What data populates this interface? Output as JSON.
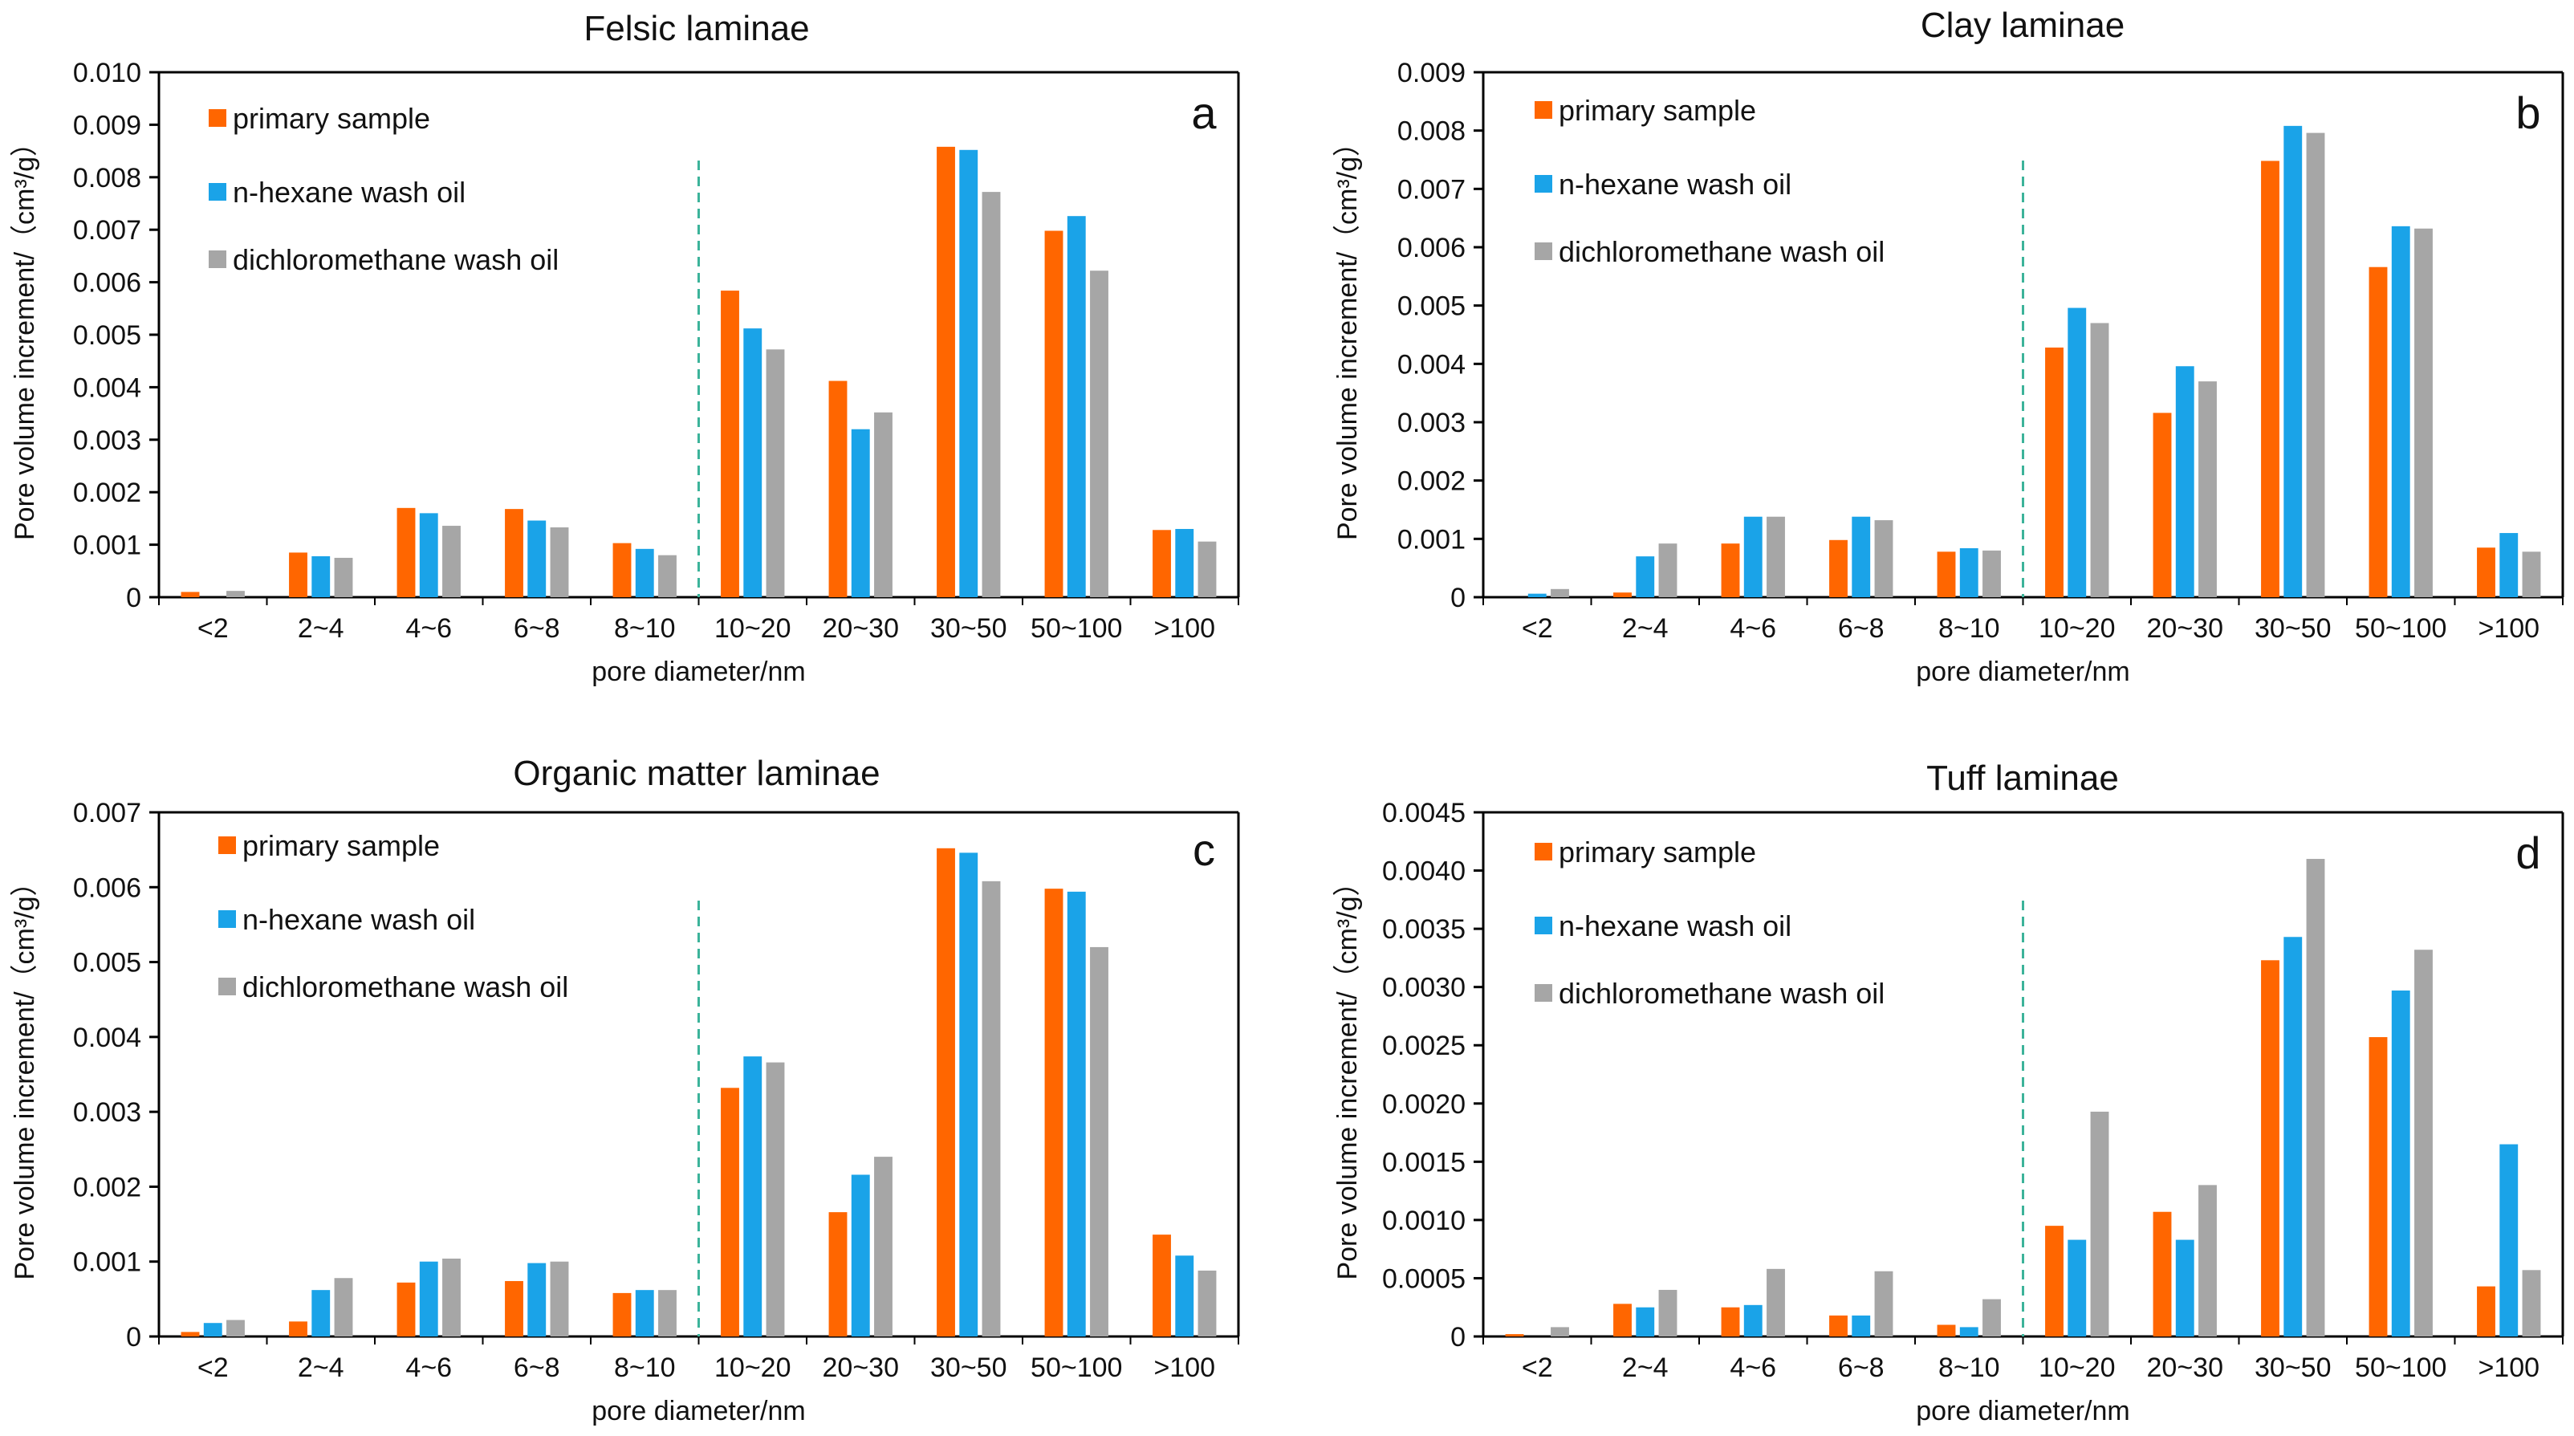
{
  "figure": {
    "colors": {
      "primary": "#FF6600",
      "hexane": "#1AA3E8",
      "dcm": "#A6A6A6",
      "divider": "#3CB39A",
      "axis": "#000000"
    }
  },
  "chart_data": [
    {
      "type": "bar",
      "title": "Felsic laminae",
      "panel_label": "a",
      "xlabel": "pore diameter/nm",
      "ylabel": "Pore volume increment/（cm³/g）",
      "ylim": [
        0,
        0.01
      ],
      "yticks": [
        0,
        0.001,
        0.002,
        0.003,
        0.004,
        0.005,
        0.006,
        0.007,
        0.008,
        0.009,
        0.01
      ],
      "ytick_labels": [
        "0",
        "0.001",
        "0.002",
        "0.003",
        "0.004",
        "0.005",
        "0.006",
        "0.007",
        "0.008",
        "0.009",
        "0.010"
      ],
      "categories": [
        "<2",
        "2~4",
        "4~6",
        "6~8",
        "8~10",
        "10~20",
        "20~30",
        "30~50",
        "50~100",
        ">100"
      ],
      "divider_after_index": 4,
      "legend_position": "top-left",
      "series": [
        {
          "name": "primary sample",
          "color": "#FF6600",
          "values": [
            0.0001,
            0.00085,
            0.0017,
            0.00168,
            0.00103,
            0.00584,
            0.00412,
            0.00858,
            0.00698,
            0.00128
          ]
        },
        {
          "name": "n-hexane wash oil",
          "color": "#1AA3E8",
          "values": [
            0.0,
            0.00078,
            0.0016,
            0.00146,
            0.00092,
            0.00512,
            0.0032,
            0.00852,
            0.00726,
            0.0013
          ]
        },
        {
          "name": "dichloromethane wash oil",
          "color": "#A6A6A6",
          "values": [
            0.00012,
            0.00075,
            0.00136,
            0.00133,
            0.0008,
            0.00472,
            0.00352,
            0.00772,
            0.00622,
            0.00106
          ]
        }
      ]
    },
    {
      "type": "bar",
      "title": "Clay laminae",
      "panel_label": "b",
      "xlabel": "pore  diameter/nm",
      "ylabel": "Pore volume increment/（cm³/g）",
      "ylim": [
        0,
        0.009
      ],
      "yticks": [
        0,
        0.001,
        0.002,
        0.003,
        0.004,
        0.005,
        0.006,
        0.007,
        0.008,
        0.009
      ],
      "ytick_labels": [
        "0",
        "0.001",
        "0.002",
        "0.003",
        "0.004",
        "0.005",
        "0.006",
        "0.007",
        "0.008",
        "0.009"
      ],
      "categories": [
        "<2",
        "2~4",
        "4~6",
        "6~8",
        "8~10",
        "10~20",
        "20~30",
        "30~50",
        "50~100",
        ">100"
      ],
      "divider_after_index": 4,
      "legend_position": "top-left",
      "series": [
        {
          "name": "primary sample",
          "color": "#FF6600",
          "values": [
            0.0,
            8e-05,
            0.00092,
            0.00098,
            0.00078,
            0.00428,
            0.00316,
            0.00748,
            0.00566,
            0.00085
          ]
        },
        {
          "name": "n-hexane wash oil",
          "color": "#1AA3E8",
          "values": [
            6e-05,
            0.0007,
            0.00138,
            0.00138,
            0.00084,
            0.00496,
            0.00396,
            0.00808,
            0.00636,
            0.0011
          ]
        },
        {
          "name": "dichloromethane wash oil",
          "color": "#A6A6A6",
          "values": [
            0.00014,
            0.00092,
            0.00138,
            0.00132,
            0.0008,
            0.0047,
            0.0037,
            0.00796,
            0.00632,
            0.00078
          ]
        }
      ]
    },
    {
      "type": "bar",
      "title": "Organic matter laminae",
      "panel_label": "c",
      "xlabel": "pore  diameter/nm",
      "ylabel": "Pore volume increment/（cm³/g）",
      "ylim": [
        0,
        0.007
      ],
      "yticks": [
        0,
        0.001,
        0.002,
        0.003,
        0.004,
        0.005,
        0.006,
        0.007
      ],
      "ytick_labels": [
        "0",
        "0.001",
        "0.002",
        "0.003",
        "0.004",
        "0.005",
        "0.006",
        "0.007"
      ],
      "categories": [
        "<2",
        "2~4",
        "4~6",
        "6~8",
        "8~10",
        "10~20",
        "20~30",
        "30~50",
        "50~100",
        ">100"
      ],
      "divider_after_index": 4,
      "legend_position": "top-left",
      "series": [
        {
          "name": "primary sample",
          "color": "#FF6600",
          "values": [
            6e-05,
            0.0002,
            0.00072,
            0.00074,
            0.00058,
            0.00332,
            0.00166,
            0.00652,
            0.00598,
            0.00136
          ]
        },
        {
          "name": "n-hexane wash oil",
          "color": "#1AA3E8",
          "values": [
            0.00018,
            0.00062,
            0.001,
            0.00098,
            0.00062,
            0.00374,
            0.00216,
            0.00646,
            0.00594,
            0.00108
          ]
        },
        {
          "name": "dichloromethane wash oil",
          "color": "#A6A6A6",
          "values": [
            0.00022,
            0.00078,
            0.00104,
            0.001,
            0.00062,
            0.00366,
            0.0024,
            0.00608,
            0.0052,
            0.00088
          ]
        }
      ]
    },
    {
      "type": "bar",
      "title": "Tuff laminae",
      "panel_label": "d",
      "xlabel": "pore diameter/nm",
      "ylabel": "Pore volume increment/（cm³/g）",
      "ylim": [
        0,
        0.0045
      ],
      "yticks": [
        0,
        0.0005,
        0.001,
        0.0015,
        0.002,
        0.0025,
        0.003,
        0.0035,
        0.004,
        0.0045
      ],
      "ytick_labels": [
        "0",
        "0.0005",
        "0.0010",
        "0.0015",
        "0.0020",
        "0.0025",
        "0.0030",
        "0.0035",
        "0.0040",
        "0.0045"
      ],
      "categories": [
        "<2",
        "2~4",
        "4~6",
        "6~8",
        "8~10",
        "10~20",
        "20~30",
        "30~50",
        "50~100",
        ">100"
      ],
      "divider_after_index": 4,
      "legend_position": "top-left",
      "series": [
        {
          "name": "primary sample",
          "color": "#FF6600",
          "values": [
            2e-05,
            0.00028,
            0.00025,
            0.00018,
            0.0001,
            0.00095,
            0.00107,
            0.00323,
            0.00257,
            0.00043
          ]
        },
        {
          "name": "n-hexane wash oil",
          "color": "#1AA3E8",
          "values": [
            0.0,
            0.00025,
            0.00027,
            0.00018,
            8e-05,
            0.00083,
            0.00083,
            0.00343,
            0.00297,
            0.00165
          ]
        },
        {
          "name": "dichloromethane wash oil",
          "color": "#A6A6A6",
          "values": [
            8e-05,
            0.0004,
            0.00058,
            0.00056,
            0.00032,
            0.00193,
            0.0013,
            0.0041,
            0.00332,
            0.00057
          ]
        }
      ]
    }
  ]
}
